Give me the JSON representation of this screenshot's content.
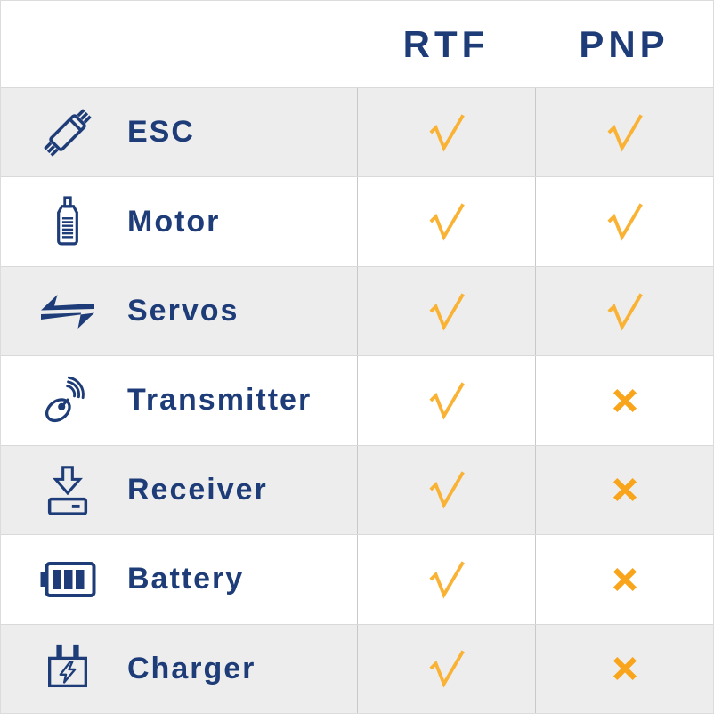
{
  "chart_data": {
    "type": "table",
    "title": "",
    "columns": [
      "",
      "RTF",
      "PNP"
    ],
    "rows": [
      {
        "label": "ESC",
        "icon": "esc-icon",
        "rtf": "check",
        "pnp": "check"
      },
      {
        "label": "Motor",
        "icon": "motor-icon",
        "rtf": "check",
        "pnp": "check"
      },
      {
        "label": "Servos",
        "icon": "servos-icon",
        "rtf": "check",
        "pnp": "check"
      },
      {
        "label": "Transmitter",
        "icon": "transmitter-icon",
        "rtf": "check",
        "pnp": "cross"
      },
      {
        "label": "Receiver",
        "icon": "receiver-icon",
        "rtf": "check",
        "pnp": "cross"
      },
      {
        "label": "Battery",
        "icon": "battery-icon",
        "rtf": "check",
        "pnp": "cross"
      },
      {
        "label": "Charger",
        "icon": "charger-icon",
        "rtf": "check",
        "pnp": "cross"
      }
    ],
    "legend": {
      "check": "included",
      "cross": "not included"
    }
  },
  "header": {
    "col_rtf": "RTF",
    "col_pnp": "PNP"
  },
  "colors": {
    "navy": "#1d3c78",
    "check": "#f9b233",
    "cross": "#f9a51b",
    "row_alt_bg": "#ededed",
    "row_plain_bg": "#ffffff",
    "grid_line": "#d9d9d9",
    "column_line": "#c9c9c9"
  }
}
